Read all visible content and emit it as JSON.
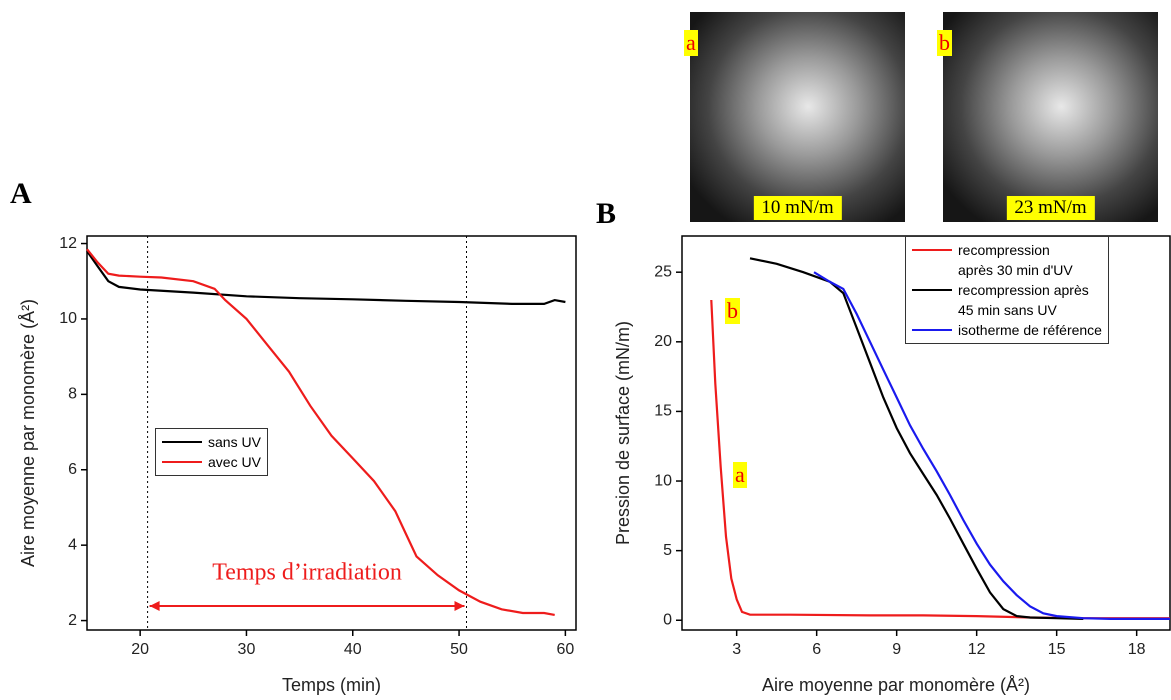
{
  "panels": [
    "A",
    "B"
  ],
  "images": [
    {
      "label": "a",
      "caption": "10 mN/m"
    },
    {
      "label": "b",
      "caption": "23 mN/m"
    }
  ],
  "chart_data": [
    {
      "type": "line",
      "xlabel": "Temps (min)",
      "ylabel": "Aire moyenne par monomère (Å²)",
      "xlim": [
        15,
        61
      ],
      "xticks": [
        20,
        30,
        40,
        50,
        60
      ],
      "ylim": [
        1.75,
        12.2
      ],
      "yticks": [
        2,
        4,
        6,
        8,
        10,
        12
      ],
      "legend": "center left",
      "vlines": [
        20.7,
        50.7
      ],
      "annotation": "Temps d’irradiation",
      "series": [
        {
          "name": "sans UV",
          "color": "#000000",
          "x": [
            15,
            16,
            17,
            18,
            20,
            25,
            30,
            35,
            40,
            45,
            50,
            55,
            58,
            59,
            60
          ],
          "values": [
            11.8,
            11.4,
            11.0,
            10.85,
            10.78,
            10.7,
            10.6,
            10.55,
            10.52,
            10.48,
            10.45,
            10.4,
            10.4,
            10.5,
            10.45
          ]
        },
        {
          "name": "avec UV",
          "color": "#ee1c1c",
          "x": [
            15,
            16,
            17,
            18,
            20,
            22,
            25,
            27,
            28,
            30,
            32,
            34,
            36,
            38,
            40,
            42,
            44,
            45,
            46,
            48,
            50,
            52,
            54,
            56,
            58,
            59
          ],
          "values": [
            11.85,
            11.5,
            11.2,
            11.15,
            11.12,
            11.1,
            11.0,
            10.8,
            10.5,
            10.0,
            9.3,
            8.6,
            7.7,
            6.9,
            6.3,
            5.7,
            4.9,
            4.3,
            3.7,
            3.2,
            2.8,
            2.5,
            2.3,
            2.2,
            2.2,
            2.15
          ]
        }
      ]
    },
    {
      "type": "line",
      "xlabel": "Aire moyenne par monomère (Å²)",
      "ylabel": "Pression de surface (mN/m)",
      "xlim": [
        0.95,
        19.25
      ],
      "xticks": [
        3,
        6,
        9,
        12,
        15,
        18
      ],
      "ylim": [
        -0.7,
        27.6
      ],
      "yticks": [
        0,
        5,
        10,
        15,
        20,
        25
      ],
      "legend": "upper right",
      "annotations": [
        "b",
        "a"
      ],
      "series": [
        {
          "name": "recompression\naprès 30 min d'UV",
          "color": "#ee1c1c",
          "x": [
            2.05,
            2.2,
            2.4,
            2.6,
            2.8,
            3.0,
            3.2,
            3.5,
            5,
            8,
            10,
            12,
            14,
            16,
            19.25
          ],
          "values": [
            23,
            17,
            11,
            6,
            3,
            1.5,
            0.6,
            0.4,
            0.4,
            0.35,
            0.35,
            0.3,
            0.2,
            0.15,
            0.15
          ]
        },
        {
          "name": "recompression après\n45 min sans UV",
          "color": "#000000",
          "x": [
            3.5,
            4.5,
            5.5,
            6.5,
            7.0,
            7.5,
            8,
            8.5,
            9,
            9.5,
            10,
            10.5,
            11,
            11.5,
            12,
            12.5,
            13,
            13.5,
            14,
            15,
            16
          ],
          "values": [
            26,
            25.6,
            25,
            24.3,
            23.5,
            21,
            18.5,
            16,
            13.8,
            12,
            10.5,
            9,
            7.3,
            5.5,
            3.7,
            2,
            0.8,
            0.3,
            0.2,
            0.15,
            0.1
          ]
        },
        {
          "name": "isotherme de référence",
          "color": "#1a1aee",
          "x": [
            5.9,
            6.5,
            7,
            7.5,
            8,
            8.5,
            9,
            9.5,
            10,
            10.5,
            11,
            11.5,
            12,
            12.5,
            13,
            13.5,
            14,
            14.5,
            15,
            16,
            17,
            19.25
          ],
          "values": [
            25,
            24.3,
            23.8,
            22,
            20,
            18,
            16,
            14,
            12.3,
            10.7,
            9,
            7.2,
            5.5,
            4,
            2.8,
            1.8,
            1,
            0.5,
            0.3,
            0.15,
            0.1,
            0.1
          ]
        }
      ]
    }
  ]
}
